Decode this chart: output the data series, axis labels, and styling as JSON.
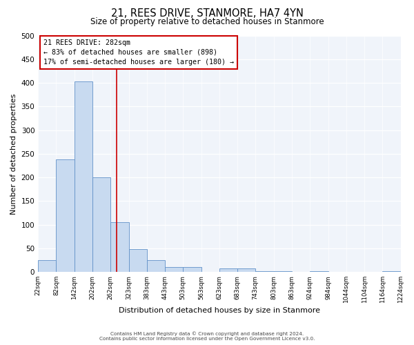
{
  "title": "21, REES DRIVE, STANMORE, HA7 4YN",
  "subtitle": "Size of property relative to detached houses in Stanmore",
  "xlabel": "Distribution of detached houses by size in Stanmore",
  "ylabel": "Number of detached properties",
  "bin_edges": [
    22,
    82,
    142,
    202,
    262,
    323,
    383,
    443,
    503,
    563,
    623,
    683,
    743,
    803,
    863,
    924,
    984,
    1044,
    1104,
    1164,
    1224
  ],
  "bar_heights": [
    25,
    238,
    403,
    200,
    105,
    48,
    25,
    10,
    10,
    0,
    8,
    8,
    2,
    2,
    0,
    2,
    0,
    0,
    0,
    2
  ],
  "bar_color": "#c8daf0",
  "bar_edge_color": "#6090c8",
  "property_line_x": 282,
  "property_line_color": "#cc0000",
  "annotation_title": "21 REES DRIVE: 282sqm",
  "annotation_line1": "← 83% of detached houses are smaller (898)",
  "annotation_line2": "17% of semi-detached houses are larger (180) →",
  "annotation_box_color": "#ffffff",
  "annotation_box_edge_color": "#cc0000",
  "ylim": [
    0,
    500
  ],
  "yticks": [
    0,
    50,
    100,
    150,
    200,
    250,
    300,
    350,
    400,
    450,
    500
  ],
  "tick_labels": [
    "22sqm",
    "82sqm",
    "142sqm",
    "202sqm",
    "262sqm",
    "323sqm",
    "383sqm",
    "443sqm",
    "503sqm",
    "563sqm",
    "623sqm",
    "683sqm",
    "743sqm",
    "803sqm",
    "863sqm",
    "924sqm",
    "984sqm",
    "1044sqm",
    "1104sqm",
    "1164sqm",
    "1224sqm"
  ],
  "footer1": "Contains HM Land Registry data © Crown copyright and database right 2024.",
  "footer2": "Contains public sector information licensed under the Open Government Licence v3.0.",
  "bg_color": "#ffffff",
  "plot_bg_color": "#f0f4fa"
}
